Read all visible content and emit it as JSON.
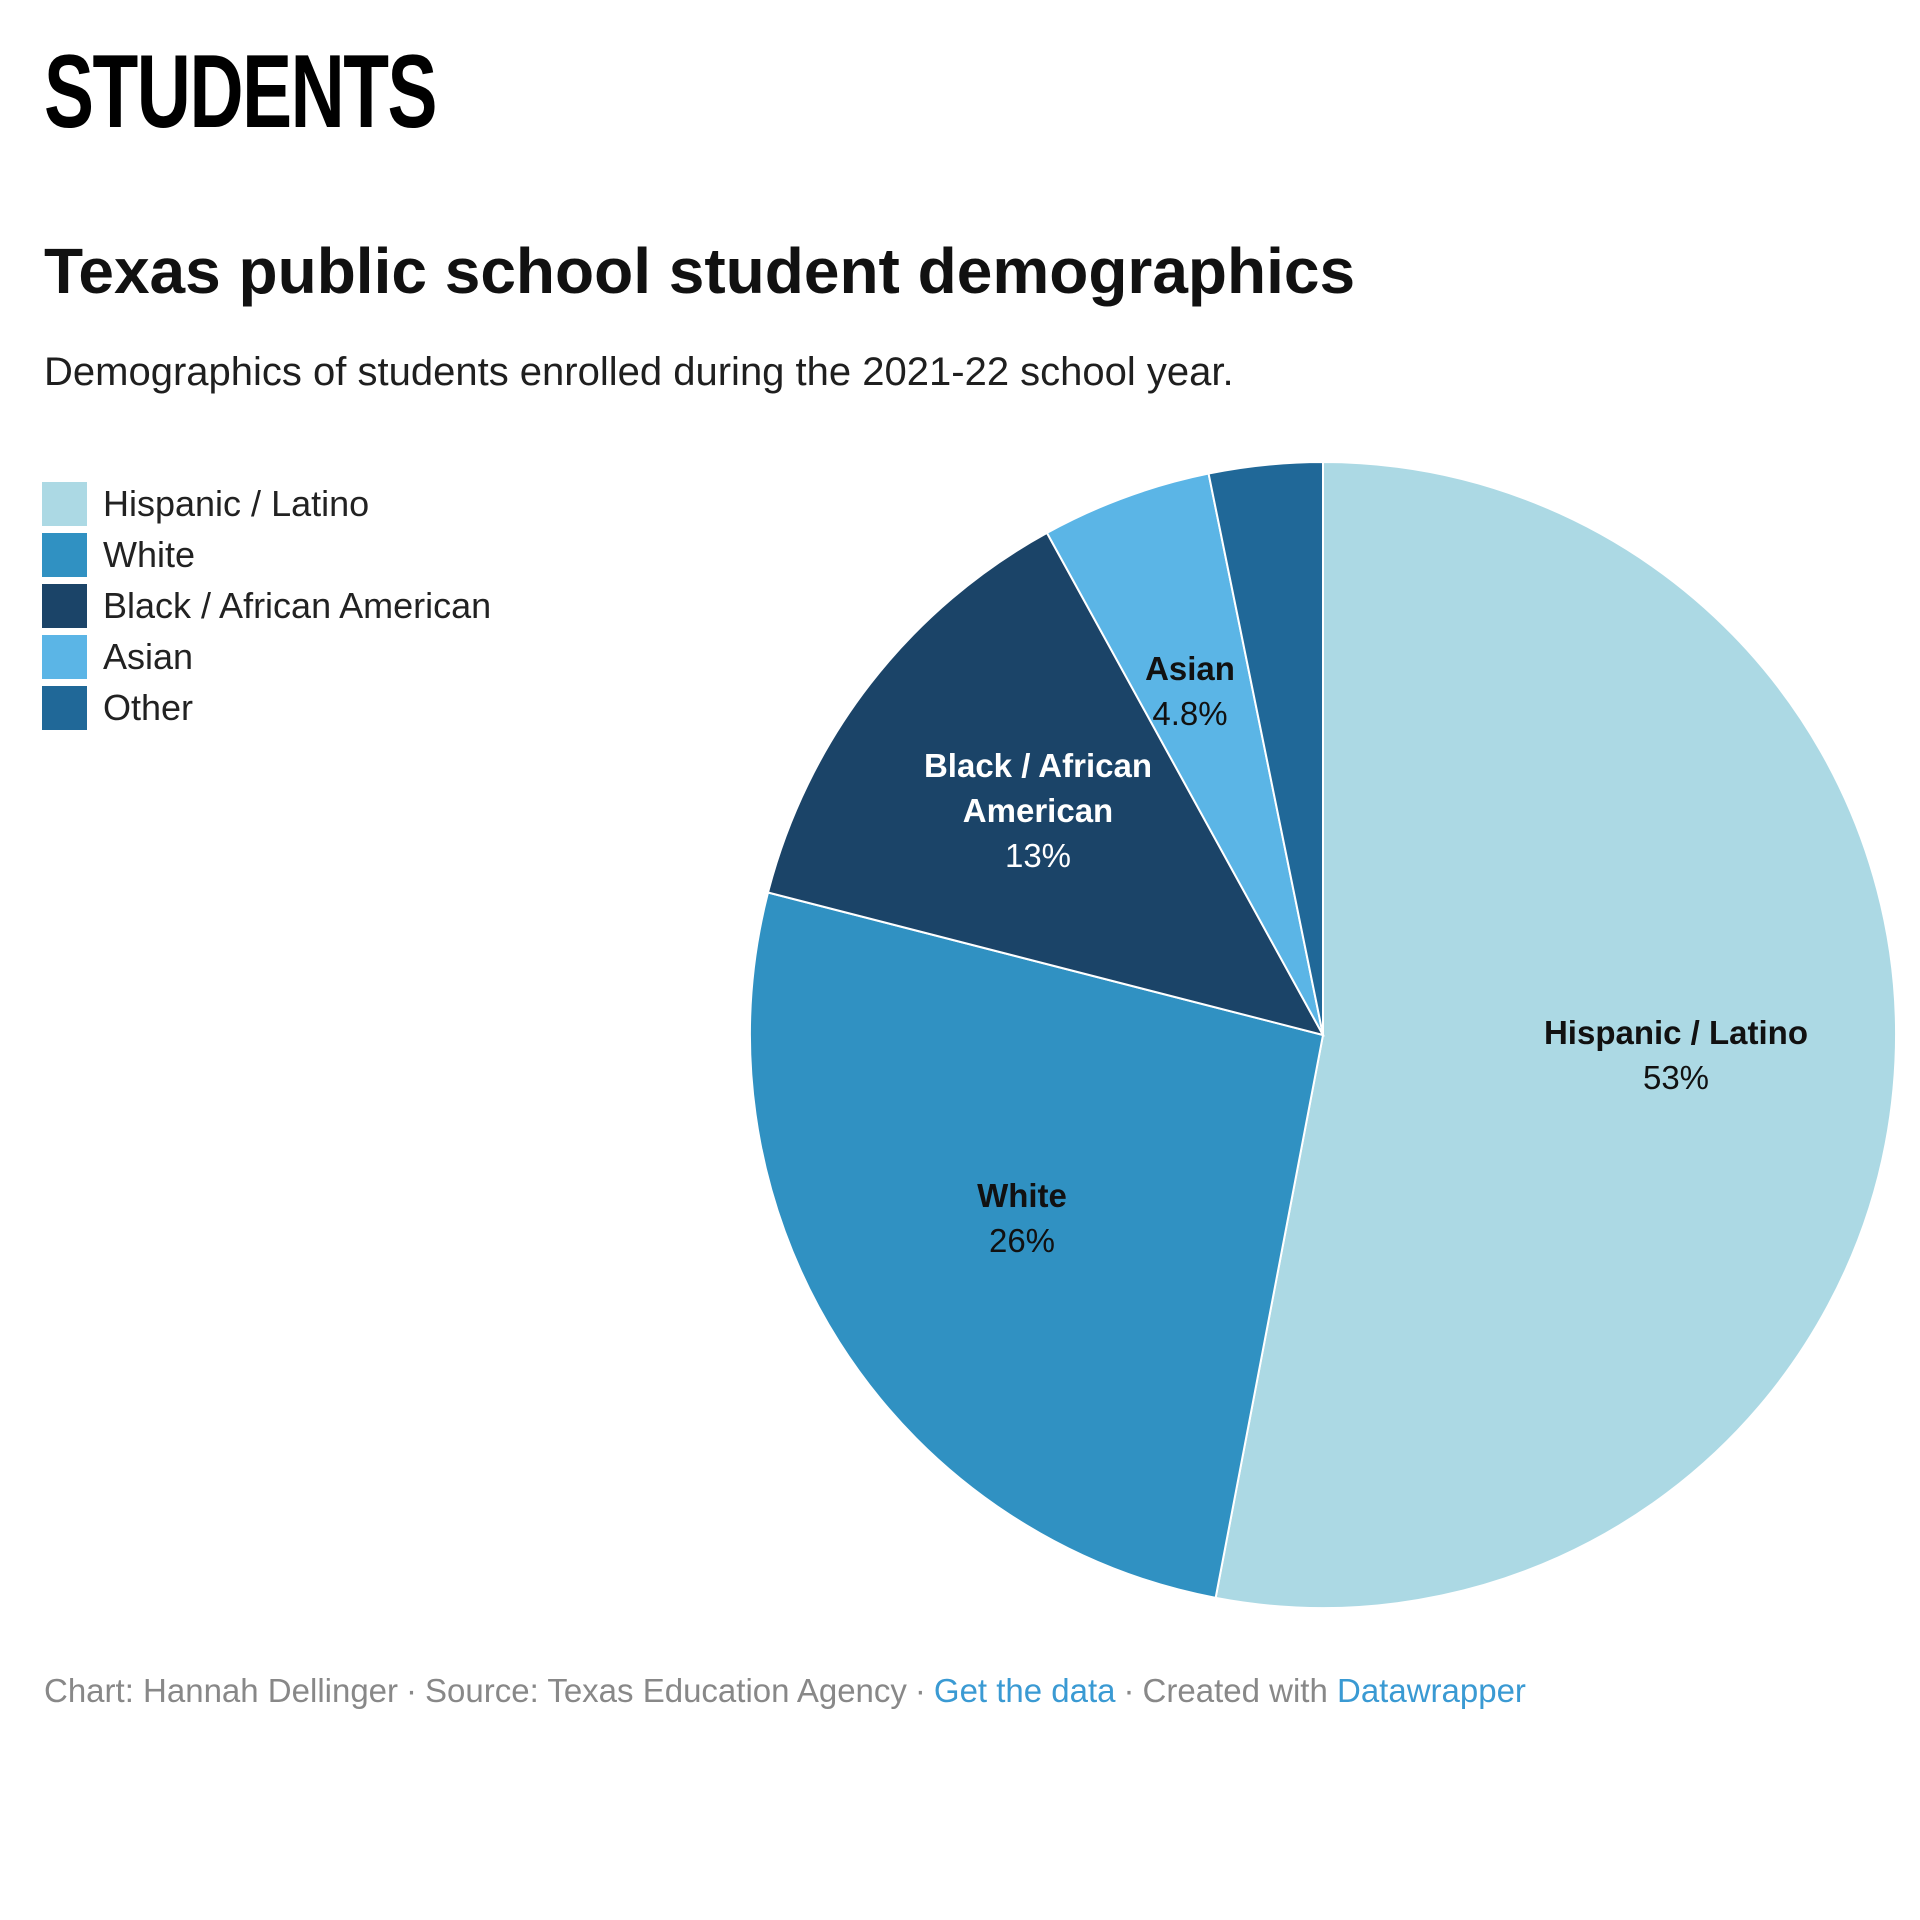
{
  "section_heading": "STUDENTS",
  "colors": {
    "hispanic": "#acd9e4",
    "white": "#3091c2",
    "black": "#1b4468",
    "asian": "#5bb5e6",
    "other": "#206898"
  },
  "chart_data": {
    "type": "pie",
    "title": "Texas public school student demographics",
    "subtitle": "Demographics of students enrolled during the 2021-22 school year.",
    "legend_placement": "top-left",
    "slices": [
      {
        "name": "Hispanic / Latino",
        "value": 53,
        "label": "53%",
        "color": "#acd9e4",
        "label_lines": [
          "Hispanic / Latino"
        ],
        "text_color": "#111111"
      },
      {
        "name": "White",
        "value": 26,
        "label": "26%",
        "color": "#3091c2",
        "label_lines": [
          "White"
        ],
        "text_color": "#111111"
      },
      {
        "name": "Black / African American",
        "value": 13,
        "label": "13%",
        "color": "#1b4468",
        "label_lines": [
          "Black / African",
          "American"
        ],
        "text_color": "#ffffff"
      },
      {
        "name": "Asian",
        "value": 4.8,
        "label": "4.8%",
        "color": "#5bb5e6",
        "label_lines": [
          "Asian"
        ],
        "text_color": "#111111"
      },
      {
        "name": "Other",
        "value": 3.2,
        "label": "",
        "color": "#206898",
        "label_lines": [],
        "text_color": "#ffffff"
      }
    ]
  },
  "footer": {
    "credit": "Chart: Hannah Dellinger",
    "source": "Source: Texas Education Agency",
    "data_link": "Get the data",
    "created": "Created with",
    "tool_link": "Datawrapper"
  }
}
